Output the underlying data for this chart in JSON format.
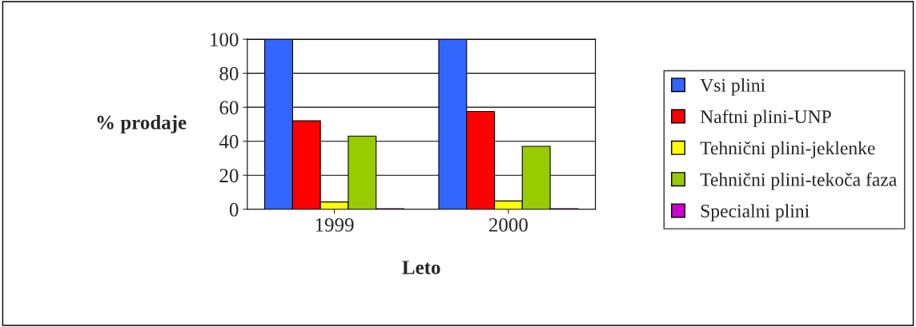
{
  "chart_data": {
    "type": "bar",
    "xlabel": "Leto",
    "ylabel": "% prodaje",
    "categories": [
      "1999",
      "2000"
    ],
    "series": [
      {
        "name": "Vsi plini",
        "color": "#3366ff",
        "values": [
          100,
          100
        ]
      },
      {
        "name": "Naftni plini-UNP",
        "color": "#ff0000",
        "values": [
          52,
          57.5
        ]
      },
      {
        "name": "Tehnični plini-jeklenke",
        "color": "#ffff00",
        "values": [
          4.3,
          4.9
        ]
      },
      {
        "name": "Tehnični plini-tekoča faza",
        "color": "#99cc00",
        "values": [
          43,
          37
        ]
      },
      {
        "name": "Specialni plini",
        "color": "#cc00cc",
        "values": [
          0.3,
          0.3
        ]
      }
    ],
    "ylim": [
      0,
      100
    ],
    "yticks": [
      0,
      20,
      40,
      60,
      80,
      100
    ],
    "grid": "y",
    "legend": "right"
  }
}
